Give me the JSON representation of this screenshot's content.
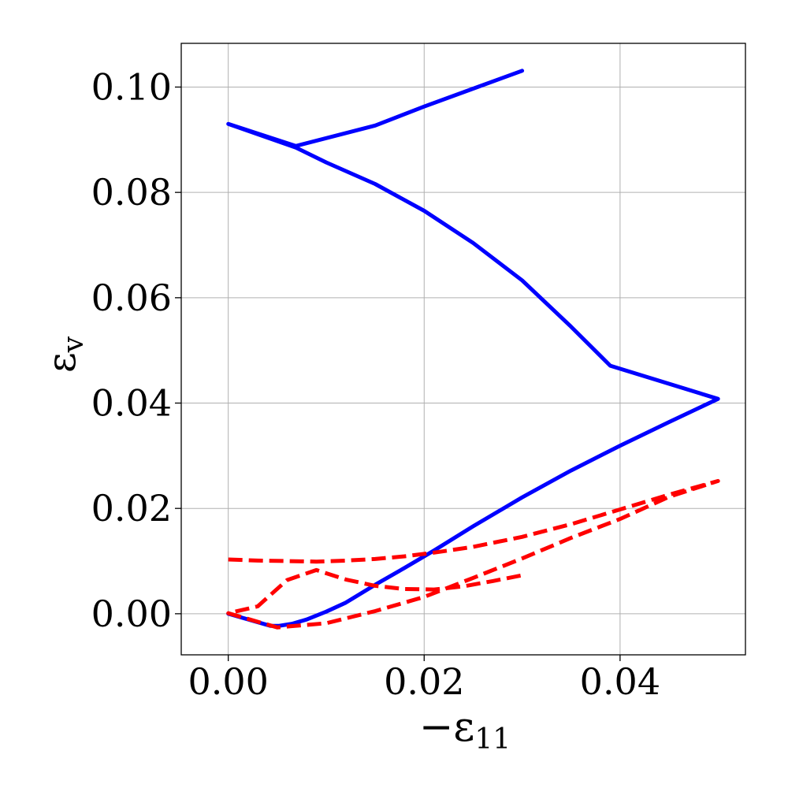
{
  "chart_data": {
    "type": "line",
    "title": "",
    "xlabel": "−ε",
    "xlabel_sub": "11",
    "ylabel": "ε",
    "ylabel_sub": "v",
    "xlim": [
      -0.0048,
      0.0528
    ],
    "ylim": [
      -0.0078,
      0.1083
    ],
    "xticks": [
      0.0,
      0.02,
      0.04
    ],
    "xtick_labels": [
      "0.00",
      "0.02",
      "0.04"
    ],
    "yticks": [
      0.0,
      0.02,
      0.04,
      0.06,
      0.08,
      0.1
    ],
    "ytick_labels": [
      "0.00",
      "0.02",
      "0.04",
      "0.06",
      "0.08",
      "0.10"
    ],
    "grid": true,
    "legend": "none",
    "series": [
      {
        "color": "#0000ff",
        "style": "solid",
        "x": [
          0.0,
          0.0043,
          0.0052,
          0.0065,
          0.008,
          0.01,
          0.012,
          0.015,
          0.018,
          0.021,
          0.025,
          0.03,
          0.035,
          0.04,
          0.045,
          0.05,
          0.039,
          0.035,
          0.03,
          0.025,
          0.02,
          0.015,
          0.01,
          0.0069,
          0.0,
          0.0069,
          0.015,
          0.02,
          0.025,
          0.03
        ],
        "y": [
          0.0,
          -0.0023,
          -0.0023,
          -0.0019,
          -0.0011,
          0.0004,
          0.0021,
          0.0055,
          0.0087,
          0.012,
          0.0166,
          0.0221,
          0.0272,
          0.0319,
          0.0364,
          0.0408,
          0.0471,
          0.0545,
          0.0633,
          0.0704,
          0.0765,
          0.0816,
          0.0857,
          0.0885,
          0.093,
          0.0888,
          0.0927,
          0.0963,
          0.0997,
          0.1031
        ]
      },
      {
        "color": "#ff0000",
        "style": "dashed",
        "x": [
          0.0,
          0.003,
          0.006,
          0.009,
          0.012,
          0.015,
          0.018,
          0.021,
          0.025,
          0.03,
          0.035,
          0.04,
          0.045,
          0.05,
          0.045,
          0.04,
          0.035,
          0.03,
          0.025,
          0.02,
          0.015,
          0.01,
          0.005,
          0.0,
          0.003,
          0.006,
          0.009,
          0.012,
          0.015,
          0.018,
          0.021,
          0.024,
          0.027,
          0.03
        ],
        "y": [
          0.0103,
          0.0101,
          0.01,
          0.0099,
          0.0101,
          0.0104,
          0.0109,
          0.0116,
          0.0127,
          0.0146,
          0.017,
          0.0198,
          0.0226,
          0.0252,
          0.0222,
          0.018,
          0.0144,
          0.0105,
          0.0068,
          0.0032,
          0.0005,
          -0.0018,
          -0.0026,
          0.0001,
          0.0014,
          0.0064,
          0.0083,
          0.0065,
          0.0053,
          0.0047,
          0.0046,
          0.0052,
          0.0062,
          0.0073
        ]
      }
    ]
  }
}
